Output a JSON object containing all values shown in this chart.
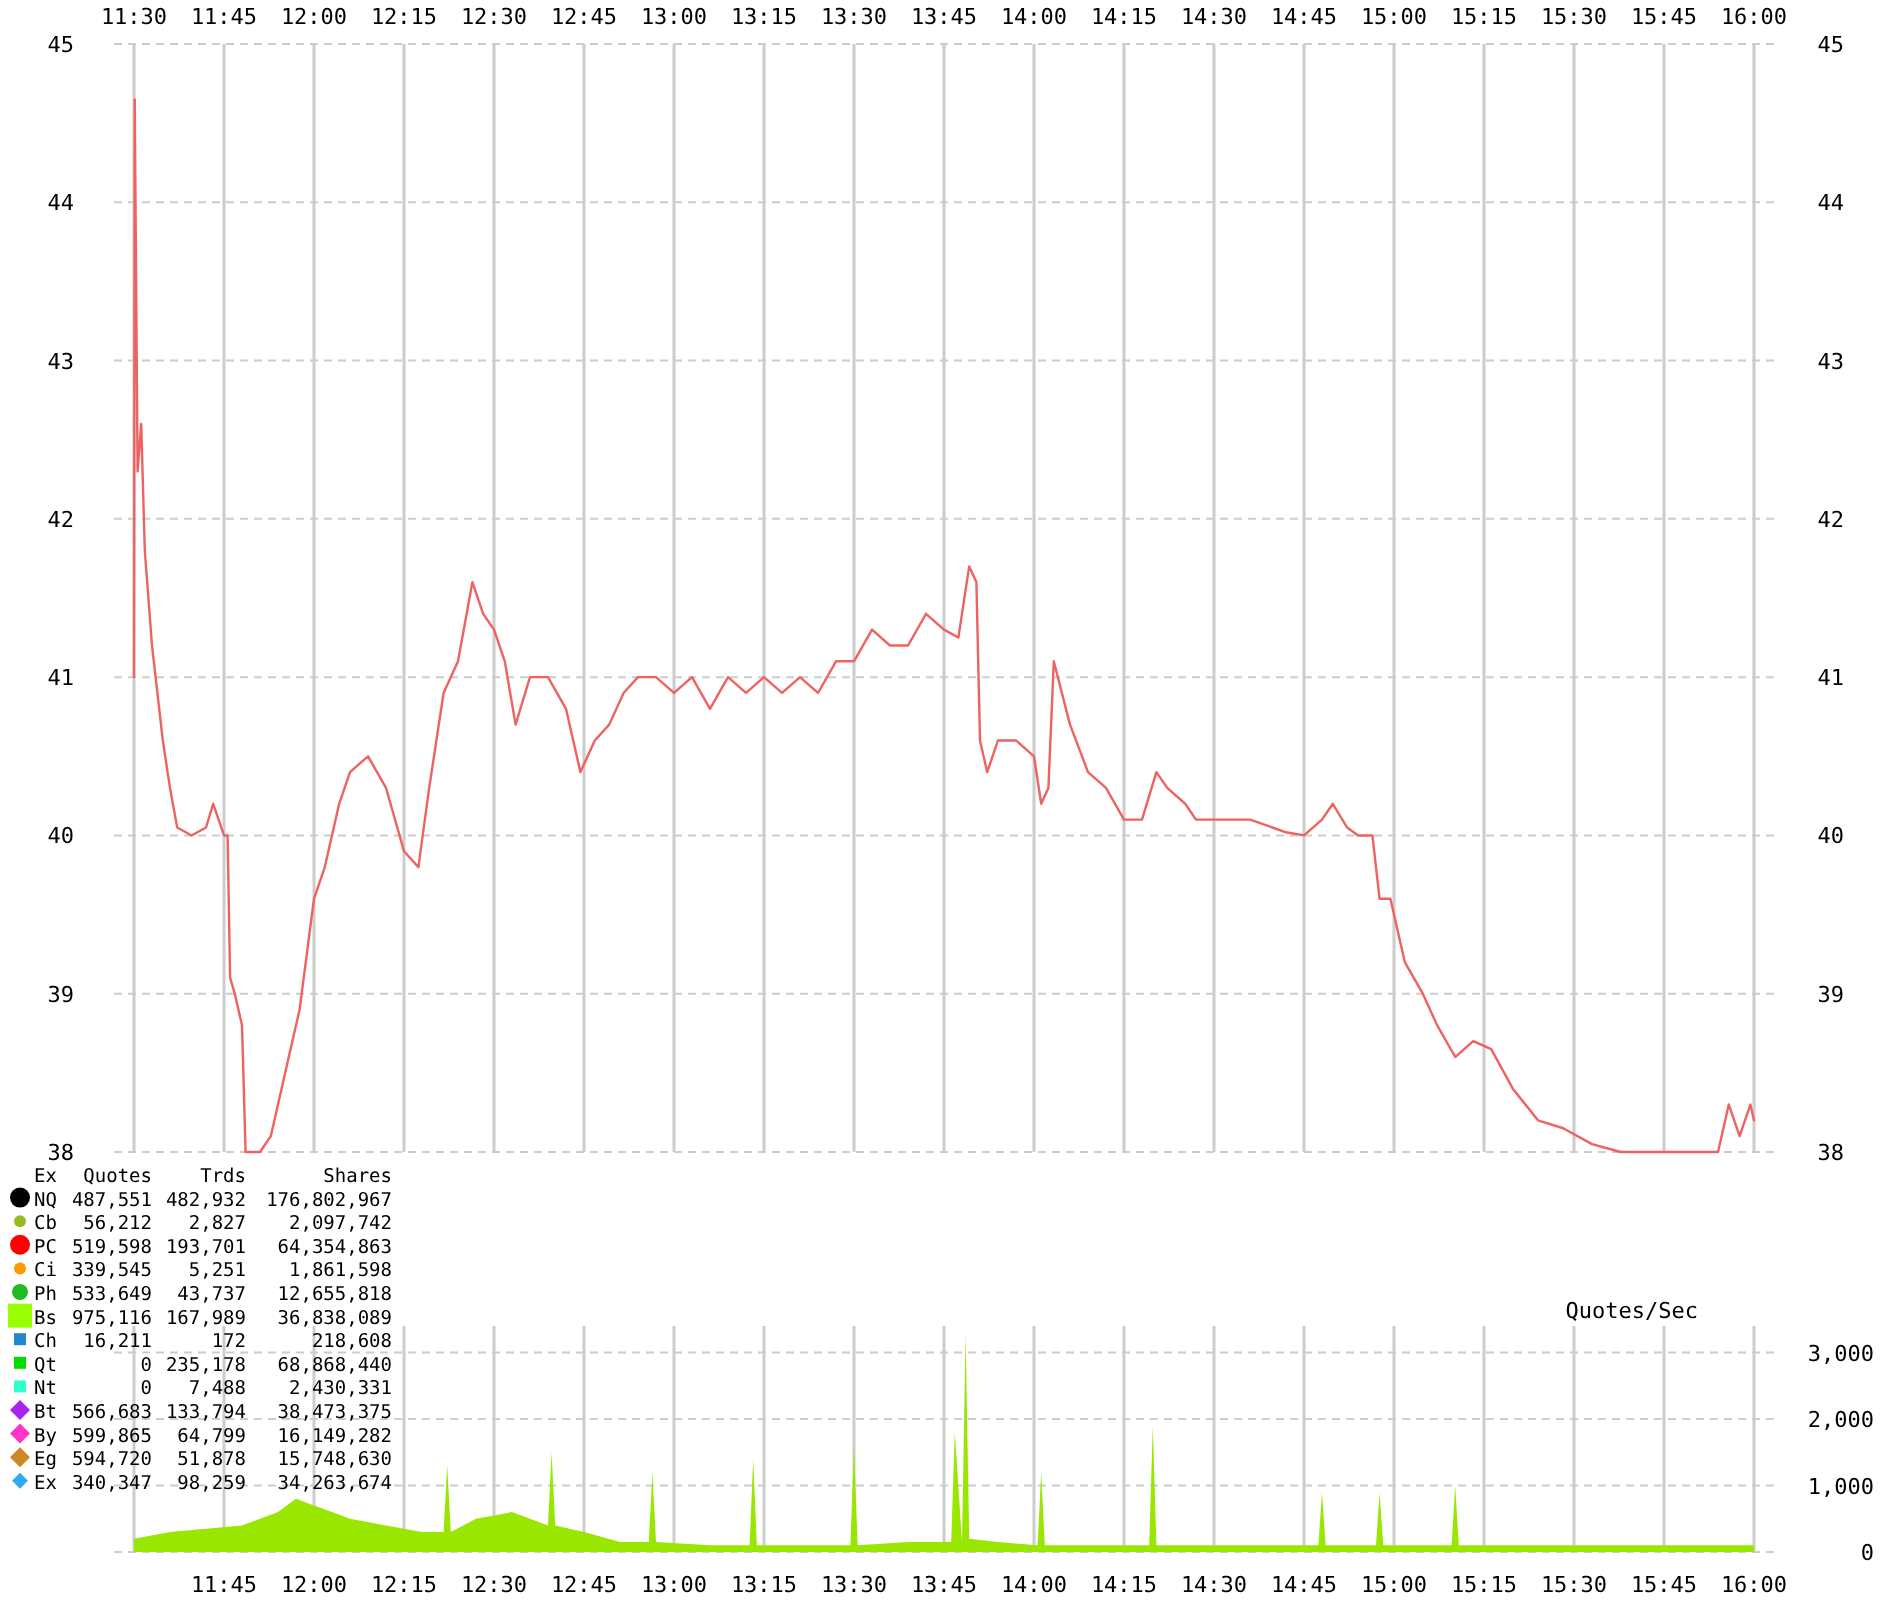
{
  "chart_data": [
    {
      "type": "line",
      "xlim": [
        11.5,
        16
      ],
      "xticks": [
        {
          "value": 11.5,
          "label": "11:30"
        },
        {
          "value": 11.75,
          "label": "11:45"
        },
        {
          "value": 12,
          "label": "12:00"
        },
        {
          "value": 12.25,
          "label": "12:15"
        },
        {
          "value": 12.5,
          "label": "12:30"
        },
        {
          "value": 12.75,
          "label": "12:45"
        },
        {
          "value": 13,
          "label": "13:00"
        },
        {
          "value": 13.25,
          "label": "13:15"
        },
        {
          "value": 13.5,
          "label": "13:30"
        },
        {
          "value": 13.75,
          "label": "13:45"
        },
        {
          "value": 14,
          "label": "14:00"
        },
        {
          "value": 14.25,
          "label": "14:15"
        },
        {
          "value": 14.5,
          "label": "14:30"
        },
        {
          "value": 14.75,
          "label": "14:45"
        },
        {
          "value": 15,
          "label": "15:00"
        },
        {
          "value": 15.25,
          "label": "15:15"
        },
        {
          "value": 15.5,
          "label": "15:30"
        },
        {
          "value": 15.75,
          "label": "15:45"
        },
        {
          "value": 16,
          "label": "16:00"
        }
      ],
      "ylim": [
        38,
        45
      ],
      "yticks": [
        38,
        39,
        40,
        41,
        42,
        43,
        44,
        45
      ],
      "y2lim": [
        38,
        45
      ],
      "y2ticks": [
        38,
        39,
        40,
        41,
        42,
        43,
        44,
        45
      ],
      "grid": true,
      "x": [
        11.5,
        11.502,
        11.51,
        11.52,
        11.53,
        11.55,
        11.58,
        11.6,
        11.62,
        11.66,
        11.7,
        11.72,
        11.75,
        11.76,
        11.767,
        11.78,
        11.8,
        11.81,
        11.85,
        11.88,
        11.92,
        11.96,
        12.0,
        12.03,
        12.07,
        12.1,
        12.15,
        12.2,
        12.25,
        12.29,
        12.32,
        12.36,
        12.4,
        12.44,
        12.47,
        12.5,
        12.53,
        12.56,
        12.6,
        12.65,
        12.7,
        12.74,
        12.78,
        12.82,
        12.86,
        12.9,
        12.95,
        13.0,
        13.05,
        13.1,
        13.15,
        13.2,
        13.25,
        13.3,
        13.35,
        13.4,
        13.45,
        13.5,
        13.55,
        13.6,
        13.65,
        13.7,
        13.75,
        13.79,
        13.82,
        13.84,
        13.85,
        13.87,
        13.9,
        13.95,
        14.0,
        14.02,
        14.04,
        14.055,
        14.1,
        14.15,
        14.2,
        14.25,
        14.3,
        14.34,
        14.37,
        14.42,
        14.45,
        14.5,
        14.6,
        14.7,
        14.75,
        14.8,
        14.83,
        14.87,
        14.9,
        14.94,
        14.96,
        14.99,
        15.03,
        15.08,
        15.12,
        15.17,
        15.22,
        15.27,
        15.33,
        15.4,
        15.47,
        15.55,
        15.63,
        15.75,
        15.9,
        15.93,
        15.96,
        15.99,
        16.0
      ],
      "series": [
        {
          "color": "#ee6262",
          "values": [
            41.0,
            44.65,
            42.3,
            42.6,
            41.8,
            41.2,
            40.6,
            40.3,
            40.05,
            40.0,
            40.05,
            40.2,
            40.0,
            40.0,
            39.1,
            39.0,
            38.8,
            38.0,
            38.0,
            38.1,
            38.5,
            38.9,
            39.6,
            39.8,
            40.2,
            40.4,
            40.5,
            40.3,
            39.9,
            39.8,
            40.3,
            40.9,
            41.1,
            41.6,
            41.4,
            41.3,
            41.1,
            40.7,
            41.0,
            41.0,
            40.8,
            40.4,
            40.6,
            40.7,
            40.9,
            41.0,
            41.0,
            40.9,
            41.0,
            40.8,
            41.0,
            40.9,
            41.0,
            40.9,
            41.0,
            40.9,
            41.1,
            41.1,
            41.3,
            41.2,
            41.2,
            41.4,
            41.3,
            41.25,
            41.7,
            41.6,
            40.6,
            40.4,
            40.6,
            40.6,
            40.5,
            40.2,
            40.3,
            41.1,
            40.7,
            40.4,
            40.3,
            40.1,
            40.1,
            40.4,
            40.3,
            40.2,
            40.1,
            40.1,
            40.1,
            40.02,
            40.0,
            40.1,
            40.2,
            40.05,
            40.0,
            40.0,
            39.6,
            39.6,
            39.2,
            39.0,
            38.8,
            38.6,
            38.7,
            38.65,
            38.4,
            38.2,
            38.15,
            38.05,
            38.0,
            38.0,
            38.0,
            38.3,
            38.1,
            38.3,
            38.2
          ]
        }
      ]
    },
    {
      "type": "area",
      "ylabel": "Quotes/Sec",
      "xlim": [
        11.5,
        16
      ],
      "xticks": [
        {
          "value": 11.5,
          "label": null
        },
        {
          "value": 11.75,
          "label": "11:45"
        },
        {
          "value": 12,
          "label": "12:00"
        },
        {
          "value": 12.25,
          "label": "12:15"
        },
        {
          "value": 12.5,
          "label": "12:30"
        },
        {
          "value": 12.75,
          "label": "12:45"
        },
        {
          "value": 13,
          "label": "13:00"
        },
        {
          "value": 13.25,
          "label": "13:15"
        },
        {
          "value": 13.5,
          "label": "13:30"
        },
        {
          "value": 13.75,
          "label": "13:45"
        },
        {
          "value": 14,
          "label": "14:00"
        },
        {
          "value": 14.25,
          "label": "14:15"
        },
        {
          "value": 14.5,
          "label": "14:30"
        },
        {
          "value": 14.75,
          "label": "14:45"
        },
        {
          "value": 15,
          "label": "15:00"
        },
        {
          "value": 15.25,
          "label": "15:15"
        },
        {
          "value": 15.5,
          "label": "15:30"
        },
        {
          "value": 15.75,
          "label": "15:45"
        },
        {
          "value": 16,
          "label": "16:00"
        }
      ],
      "ylim": [
        0,
        3400
      ],
      "yticks": [
        0,
        {
          "value": 1000,
          "label": "1,000"
        },
        {
          "value": 2000,
          "label": "2,000"
        },
        {
          "value": 3000,
          "label": "3,000"
        }
      ],
      "grid": true,
      "x": [
        11.5,
        11.6,
        11.7,
        11.8,
        11.9,
        11.95,
        12.0,
        12.05,
        12.1,
        12.2,
        12.3,
        12.36,
        12.37,
        12.38,
        12.45,
        12.55,
        12.6,
        12.65,
        12.66,
        12.67,
        12.75,
        12.85,
        12.93,
        12.94,
        12.95,
        13.1,
        13.21,
        13.22,
        13.23,
        13.4,
        13.49,
        13.5,
        13.51,
        13.65,
        13.77,
        13.78,
        13.8,
        13.81,
        13.82,
        13.9,
        14.01,
        14.02,
        14.03,
        14.2,
        14.32,
        14.33,
        14.34,
        14.5,
        14.79,
        14.8,
        14.81,
        14.95,
        14.96,
        14.97,
        15.16,
        15.17,
        15.18,
        15.5,
        15.9,
        16.0
      ],
      "series": [
        {
          "color": "#99e600",
          "values": [
            200,
            300,
            350,
            400,
            600,
            800,
            700,
            600,
            500,
            400,
            300,
            300,
            1300,
            300,
            500,
            600,
            500,
            400,
            1500,
            400,
            300,
            150,
            150,
            1200,
            150,
            100,
            100,
            1400,
            100,
            100,
            100,
            1600,
            100,
            150,
            150,
            1800,
            150,
            3300,
            200,
            150,
            100,
            1200,
            100,
            100,
            100,
            1900,
            100,
            100,
            100,
            900,
            100,
            100,
            900,
            100,
            100,
            1000,
            100,
            100,
            100,
            100
          ]
        }
      ],
      "annotations": [
        "Ex Quotes Trds Shares",
        "NQ 487,551 482,932 176,802,967",
        "Cb 56,212 2,827 2,097,742",
        "PC 519,598 193,701 64,354,863",
        "Ci 339,545 5,251 1,861,598",
        "Ph 533,649 43,737 12,655,818",
        "Bs 975,116 167,989 36,838,089",
        "Ch 16,211 172 218,608",
        "Qt 0 235,178 68,868,440",
        "Nt 0 7,488 2,430,331",
        "Bt 566,683 133,794 38,473,375",
        "By 599,865 64,799 16,149,282",
        "Eg 594,720 51,878 15,748,630",
        "Ex 340,347 98,259 34,263,674"
      ]
    }
  ]
}
